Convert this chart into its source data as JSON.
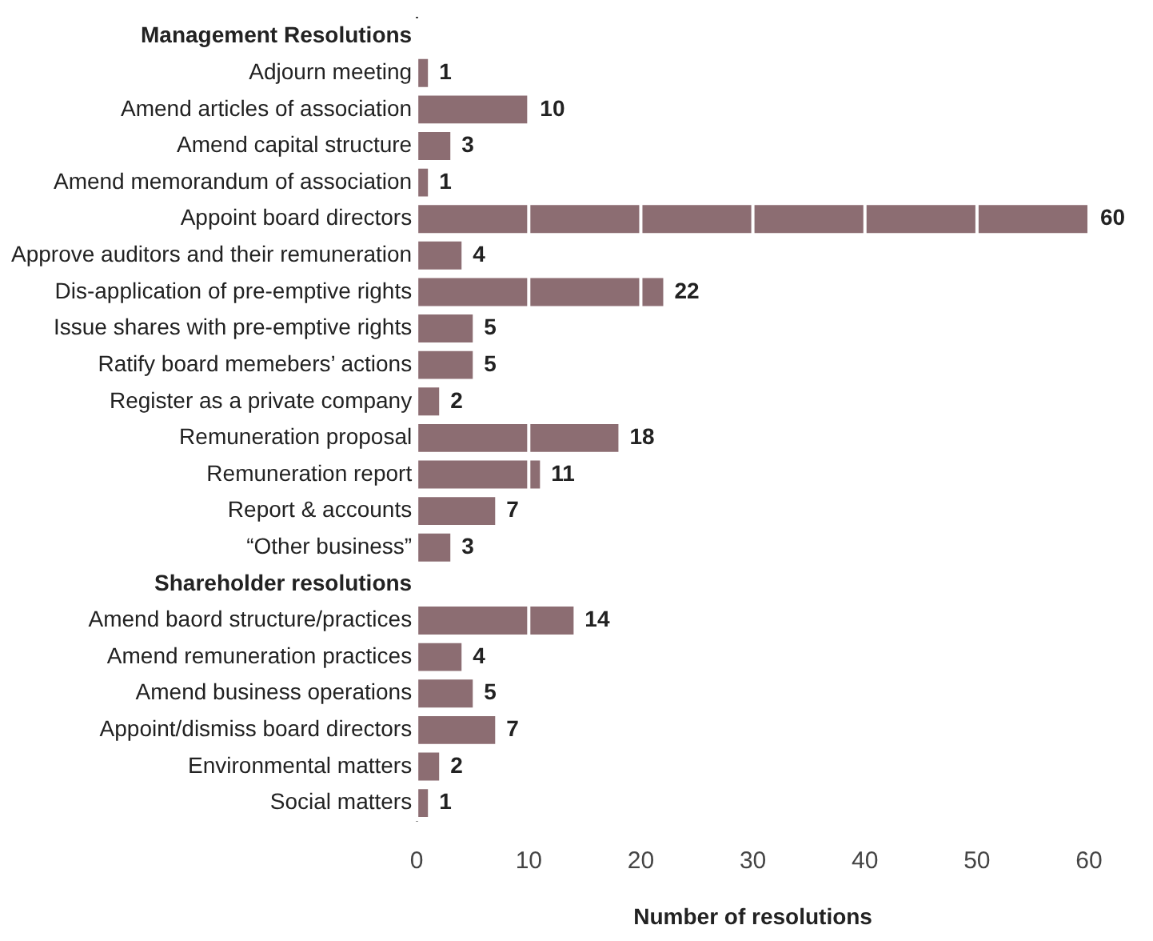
{
  "chart_data": {
    "type": "bar",
    "orientation": "horizontal",
    "xlabel": "Number of resolutions",
    "categories": [
      "Management Resolutions",
      "Adjourn meeting",
      "Amend articles of association",
      "Amend capital structure",
      "Amend memorandum of association",
      "Appoint board directors",
      "Approve auditors and their remuneration",
      "Dis-application of pre-emptive rights",
      "Issue shares with pre-emptive rights",
      "Ratify board memebers’ actions",
      "Register as a private company",
      "Remuneration proposal",
      "Remuneration report",
      "Report & accounts",
      "“Other business”",
      "Shareholder resolutions",
      "Amend baord structure/practices",
      "Amend remuneration practices",
      "Amend business operations",
      "Appoint/dismiss board directors",
      "Environmental matters",
      "Social matters"
    ],
    "values": [
      null,
      1,
      10,
      3,
      1,
      60,
      4,
      22,
      5,
      5,
      2,
      18,
      11,
      7,
      3,
      null,
      14,
      4,
      5,
      7,
      2,
      1
    ],
    "color": "#8c6d72",
    "xlim": [
      0,
      60
    ],
    "xticks": [
      0,
      10,
      20,
      30,
      40,
      50,
      60
    ],
    "grid": "x",
    "data_labels": true
  }
}
